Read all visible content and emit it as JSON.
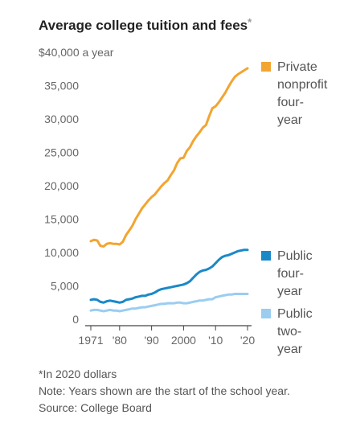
{
  "chart_data": {
    "type": "line",
    "title": "Average college tuition and fees",
    "title_marker": "*",
    "y_unit_label": "a year",
    "ylim": [
      0,
      40000
    ],
    "xlim": [
      1971,
      2020
    ],
    "y_ticks": [
      {
        "value": 0,
        "label": "0"
      },
      {
        "value": 5000,
        "label": "5,000"
      },
      {
        "value": 10000,
        "label": "10,000"
      },
      {
        "value": 15000,
        "label": "15,000"
      },
      {
        "value": 20000,
        "label": "20,000"
      },
      {
        "value": 25000,
        "label": "25,000"
      },
      {
        "value": 30000,
        "label": "30,000"
      },
      {
        "value": 35000,
        "label": "35,000"
      },
      {
        "value": 40000,
        "label": "$40,000"
      }
    ],
    "x_ticks": [
      {
        "value": 1971,
        "label": "1971"
      },
      {
        "value": 1980,
        "label": "'80"
      },
      {
        "value": 1990,
        "label": "'90"
      },
      {
        "value": 2000,
        "label": "2000"
      },
      {
        "value": 2010,
        "label": "'10"
      },
      {
        "value": 2020,
        "label": "'20"
      }
    ],
    "grid": false,
    "x": [
      1971,
      1972,
      1973,
      1974,
      1975,
      1976,
      1977,
      1978,
      1979,
      1980,
      1981,
      1982,
      1983,
      1984,
      1985,
      1986,
      1987,
      1988,
      1989,
      1990,
      1991,
      1992,
      1993,
      1994,
      1995,
      1996,
      1997,
      1998,
      1999,
      2000,
      2001,
      2002,
      2003,
      2004,
      2005,
      2006,
      2007,
      2008,
      2009,
      2010,
      2011,
      2012,
      2013,
      2014,
      2015,
      2016,
      2017,
      2018,
      2019,
      2020
    ],
    "series": [
      {
        "name": "Private nonprofit four-year",
        "name_lines": [
          "Private",
          "nonprofit",
          "four-",
          "year"
        ],
        "color": "#f2a531",
        "values": [
          11700,
          11900,
          11800,
          11000,
          10900,
          11300,
          11400,
          11300,
          11300,
          11200,
          11600,
          12600,
          13300,
          14000,
          15000,
          15800,
          16600,
          17200,
          17800,
          18300,
          18700,
          19300,
          19900,
          20400,
          20800,
          21600,
          22300,
          23400,
          24100,
          24200,
          25200,
          25800,
          26700,
          27400,
          28000,
          28700,
          29100,
          30400,
          31600,
          31900,
          32500,
          33200,
          33900,
          34800,
          35600,
          36300,
          36700,
          37000,
          37300,
          37600
        ]
      },
      {
        "name": "Public four-year",
        "name_lines": [
          "Public",
          "four-",
          "year"
        ],
        "color": "#1b88c8",
        "values": [
          2900,
          3000,
          2900,
          2600,
          2500,
          2700,
          2800,
          2700,
          2600,
          2500,
          2600,
          2900,
          3000,
          3100,
          3300,
          3400,
          3500,
          3500,
          3700,
          3800,
          4000,
          4300,
          4500,
          4600,
          4700,
          4800,
          4900,
          5000,
          5100,
          5200,
          5400,
          5700,
          6200,
          6700,
          7100,
          7300,
          7400,
          7600,
          7900,
          8400,
          8900,
          9300,
          9500,
          9600,
          9800,
          10000,
          10200,
          10300,
          10400,
          10400
        ]
      },
      {
        "name": "Public two-year",
        "name_lines": [
          "Public",
          "two-",
          "year"
        ],
        "color": "#9bcdf0",
        "values": [
          1300,
          1400,
          1400,
          1300,
          1200,
          1300,
          1400,
          1300,
          1300,
          1200,
          1300,
          1400,
          1500,
          1600,
          1600,
          1700,
          1800,
          1800,
          1900,
          2000,
          2100,
          2200,
          2300,
          2300,
          2400,
          2400,
          2400,
          2500,
          2500,
          2400,
          2400,
          2500,
          2600,
          2700,
          2800,
          2800,
          2900,
          3000,
          3000,
          3300,
          3400,
          3500,
          3600,
          3700,
          3700,
          3800,
          3800,
          3800,
          3800,
          3800
        ]
      }
    ]
  },
  "notes": {
    "footnote": "*In 2020 dollars",
    "note": "Note: Years shown are the start of the school year.",
    "source": "Source: College Board"
  }
}
